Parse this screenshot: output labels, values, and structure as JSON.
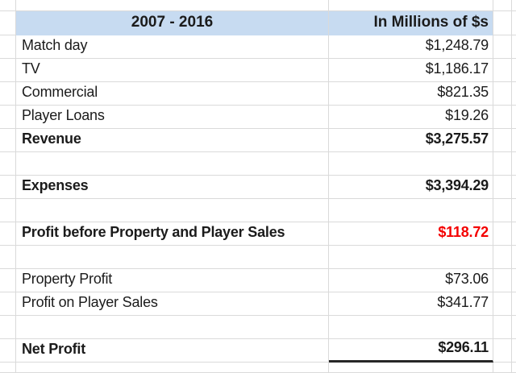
{
  "header": {
    "period": "2007 - 2016",
    "unit": "In Millions of $s"
  },
  "rows": [
    {
      "label": "Match day",
      "value": "$1,248.79"
    },
    {
      "label": "TV",
      "value": "$1,186.17"
    },
    {
      "label": "Commercial",
      "value": "$821.35"
    },
    {
      "label": "Player Loans",
      "value": "$19.26"
    },
    {
      "label": "Revenue",
      "value": "$3,275.57"
    },
    {
      "label": "",
      "value": ""
    },
    {
      "label": "Expenses",
      "value": "$3,394.29"
    },
    {
      "label": "",
      "value": ""
    },
    {
      "label": "Profit before Property and Player Sales",
      "value": "$118.72"
    },
    {
      "label": "",
      "value": ""
    },
    {
      "label": "Property Profit",
      "value": "$73.06"
    },
    {
      "label": "Profit on Player Sales",
      "value": "$341.77"
    },
    {
      "label": "",
      "value": ""
    },
    {
      "label": "Net Profit",
      "value": "$296.11"
    }
  ],
  "colors": {
    "header_bg": "#c7dbf1",
    "negative_value": "#f40000",
    "gridline": "#dadada",
    "underline": "#262626"
  }
}
